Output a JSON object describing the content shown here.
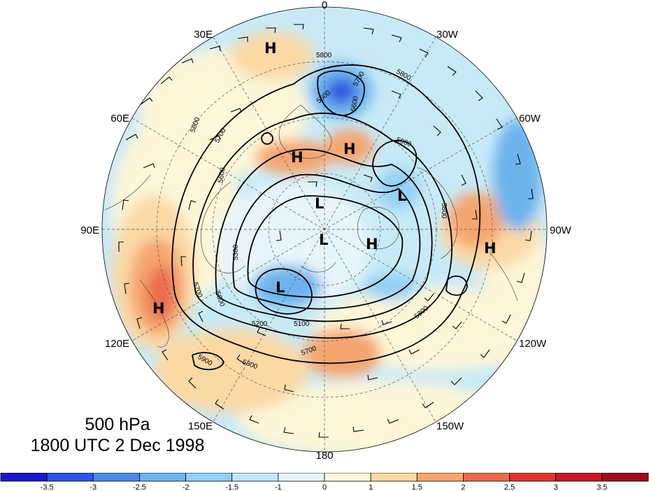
{
  "map": {
    "longitude_labels": [
      "0",
      "30W",
      "60W",
      "90W",
      "120W",
      "150W",
      "180",
      "150E",
      "120E",
      "90E",
      "60E",
      "30E"
    ],
    "contour_labels": [
      "5800",
      "5700",
      "5600",
      "5500",
      "5300",
      "5200",
      "5100",
      "5900"
    ],
    "pressure_centers": [
      {
        "type": "H",
        "label": "H"
      },
      {
        "type": "H",
        "label": "H"
      },
      {
        "type": "H",
        "label": "H"
      },
      {
        "type": "H",
        "label": "H"
      },
      {
        "type": "H",
        "label": "H"
      },
      {
        "type": "H",
        "label": "H"
      },
      {
        "type": "L",
        "label": "L"
      },
      {
        "type": "L",
        "label": "L"
      },
      {
        "type": "L",
        "label": "L"
      },
      {
        "type": "L",
        "label": "L"
      }
    ]
  },
  "title": {
    "level": "500 hPa",
    "time": "1800 UTC 2 Dec 1998"
  },
  "colorbar": {
    "labels": [
      "-3.5",
      "-3",
      "-2.5",
      "-2",
      "-1.5",
      "-1",
      "0",
      "1",
      "1.5",
      "2",
      "2.5",
      "3",
      "3.5"
    ],
    "colors": [
      "#1a1ac8",
      "#2c55e0",
      "#4d8ae6",
      "#6cb3ee",
      "#93d0f4",
      "#c2e8f8",
      "#e6f5fb",
      "#fdf6d8",
      "#fbd9a5",
      "#f5a56f",
      "#ec6b4e",
      "#e0342e",
      "#c21a24",
      "#9a0f1c"
    ]
  }
}
